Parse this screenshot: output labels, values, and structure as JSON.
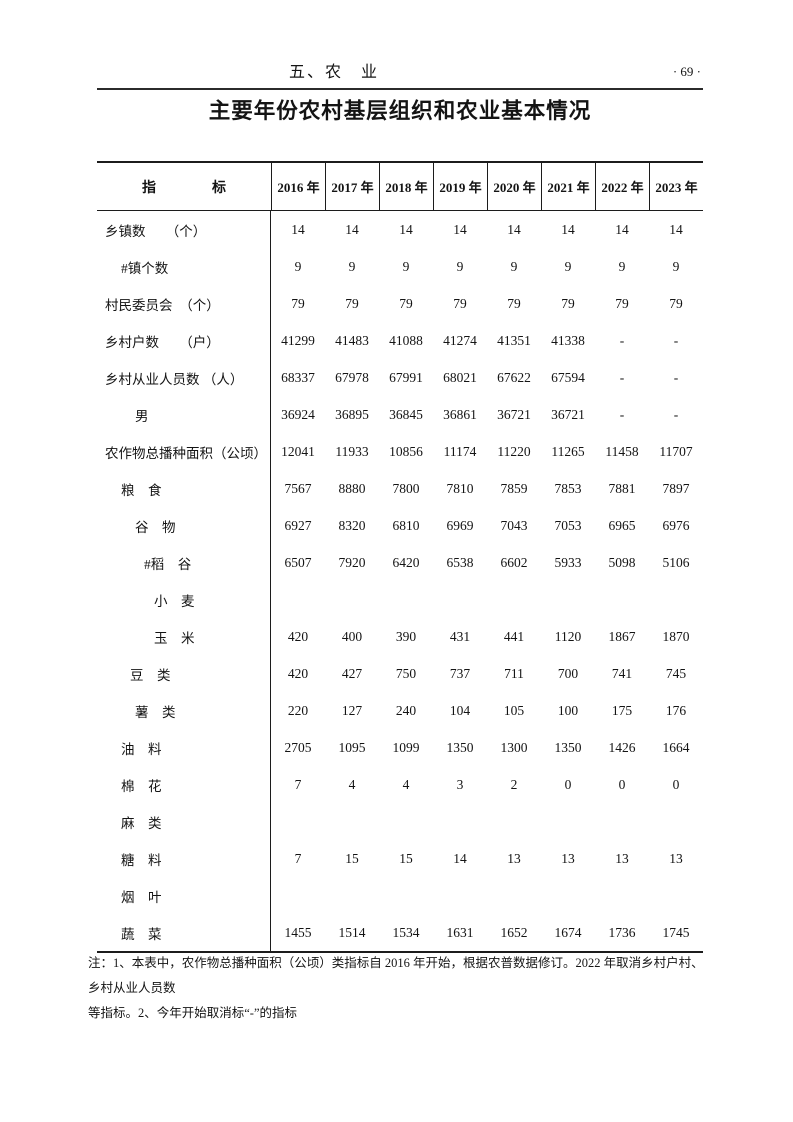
{
  "header": {
    "section_title": "五、农　业",
    "page_number": "· 69 ·"
  },
  "title": "主要年份农村基层组织和农业基本情况",
  "table": {
    "indicator_header": "指　　　　标",
    "years": [
      "2016 年",
      "2017 年",
      "2018 年",
      "2019 年",
      "2020 年",
      "2021 年",
      "2022 年",
      "2023 年"
    ],
    "rows": [
      {
        "label": "乡镇数　　（个）",
        "level": 0,
        "values": [
          "14",
          "14",
          "14",
          "14",
          "14",
          "14",
          "14",
          "14"
        ]
      },
      {
        "label": "#镇个数",
        "level": 1,
        "values": [
          "9",
          "9",
          "9",
          "9",
          "9",
          "9",
          "9",
          "9"
        ]
      },
      {
        "label": "村民委员会　（个）",
        "level": 0,
        "values": [
          "79",
          "79",
          "79",
          "79",
          "79",
          "79",
          "79",
          "79"
        ]
      },
      {
        "label": "乡村户数　　（户）",
        "level": 0,
        "values": [
          "41299",
          "41483",
          "41088",
          "41274",
          "41351",
          "41338",
          "-",
          "-"
        ]
      },
      {
        "label": "乡村从业人员数 （人）",
        "level": 0,
        "values": [
          "68337",
          "67978",
          "67991",
          "68021",
          "67622",
          "67594",
          "-",
          "-"
        ]
      },
      {
        "label": "男",
        "level": 3,
        "values": [
          "36924",
          "36895",
          "36845",
          "36861",
          "36721",
          "36721",
          "-",
          "-"
        ]
      },
      {
        "label": "农作物总播种面积（公顷）",
        "level": 0,
        "values": [
          "12041",
          "11933",
          "10856",
          "11174",
          "11220",
          "11265",
          "11458",
          "11707"
        ]
      },
      {
        "label": "粮　食",
        "level": 1,
        "values": [
          "7567",
          "8880",
          "7800",
          "7810",
          "7859",
          "7853",
          "7881",
          "7897"
        ]
      },
      {
        "label": "谷　物",
        "level": 3,
        "values": [
          "6927",
          "8320",
          "6810",
          "6969",
          "7043",
          "7053",
          "6965",
          "6976"
        ]
      },
      {
        "label": "#稻　谷",
        "level": 4,
        "values": [
          "6507",
          "7920",
          "6420",
          "6538",
          "6602",
          "5933",
          "5098",
          "5106"
        ]
      },
      {
        "label": "小　麦",
        "level": 5,
        "values": [
          "",
          "",
          "",
          "",
          "",
          "",
          "",
          ""
        ]
      },
      {
        "label": "玉　米",
        "level": 5,
        "values": [
          "420",
          "400",
          "390",
          "431",
          "441",
          "1120",
          "1867",
          "1870"
        ]
      },
      {
        "label": "豆　类",
        "level": 2,
        "values": [
          "420",
          "427",
          "750",
          "737",
          "711",
          "700",
          "741",
          "745"
        ]
      },
      {
        "label": "薯　类",
        "level": 3,
        "values": [
          "220",
          "127",
          "240",
          "104",
          "105",
          "100",
          "175",
          "176"
        ]
      },
      {
        "label": "油　料",
        "level": 1,
        "values": [
          "2705",
          "1095",
          "1099",
          "1350",
          "1300",
          "1350",
          "1426",
          "1664"
        ]
      },
      {
        "label": "棉　花",
        "level": 1,
        "values": [
          "7",
          "4",
          "4",
          "3",
          "2",
          "0",
          "0",
          "0"
        ]
      },
      {
        "label": "麻　类",
        "level": 1,
        "values": [
          "",
          "",
          "",
          "",
          "",
          "",
          "",
          ""
        ]
      },
      {
        "label": "糖　料",
        "level": 1,
        "values": [
          "7",
          "15",
          "15",
          "14",
          "13",
          "13",
          "13",
          "13"
        ]
      },
      {
        "label": "烟　叶",
        "level": 1,
        "values": [
          "",
          "",
          "",
          "",
          "",
          "",
          "",
          ""
        ]
      },
      {
        "label": "蔬　菜",
        "level": 1,
        "values": [
          "1455",
          "1514",
          "1534",
          "1631",
          "1652",
          "1674",
          "1736",
          "1745"
        ]
      }
    ]
  },
  "footnote": {
    "lines": [
      "注：1、本表中，农作物总播种面积（公顷）类指标自 2016 年开始，根据农普数据修订。2022 年取消乡村户村、乡村从业人员数",
      "等指标。2、今年开始取消标“-”的指标"
    ]
  }
}
